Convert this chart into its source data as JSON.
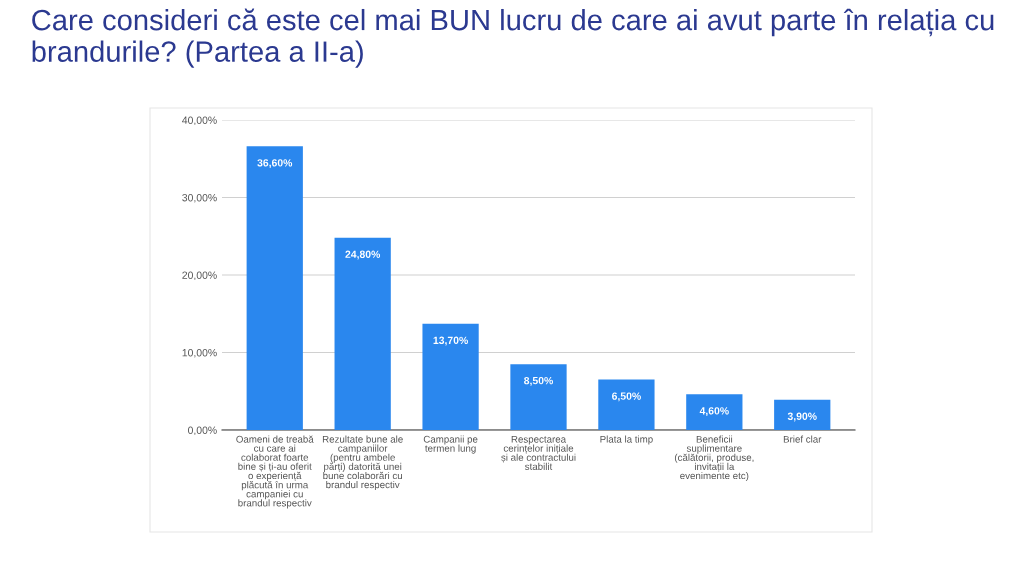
{
  "chart_data": {
    "type": "bar",
    "title": "Care consideri că este cel mai BUN lucru de care ai avut parte în relația cu brandurile? (Partea a II-a)",
    "categories": [
      "Oameni de treabă\ncu care ai\ncolaborat foarte\nbine și ți-au oferit\no experiență\nplăcută în urma\ncampaniei cu\nbrandul respectiv",
      "Rezultate bune ale\ncampaniilor\n(pentru ambele\npărți) datorită unei\nbune colaborări cu\nbrandul respectiv",
      "Campanii pe\ntermen lung",
      "Respectarea\ncerințelor inițiale\nși ale contractului\nstabilit",
      "Plata la timp",
      "Beneficii\nsuplimentare\n(călătorii, produse,\ninvitații la\nevenimente etc)",
      "Brief clar"
    ],
    "values": [
      36.6,
      24.8,
      13.7,
      8.5,
      6.5,
      4.6,
      3.9
    ],
    "value_labels": [
      "36,60%",
      "24,80%",
      "13,70%",
      "8,50%",
      "6,50%",
      "4,60%",
      "3,90%"
    ],
    "color": "#2a87ee",
    "ylim": [
      0,
      40
    ],
    "yticks": [
      {
        "value": 0,
        "label": "0,00%"
      },
      {
        "value": 10,
        "label": "10,00%"
      },
      {
        "value": 20,
        "label": "20,00%"
      },
      {
        "value": 30,
        "label": "30,00%"
      },
      {
        "value": 40,
        "label": "40,00%"
      }
    ],
    "grid": "y",
    "legend": false
  }
}
